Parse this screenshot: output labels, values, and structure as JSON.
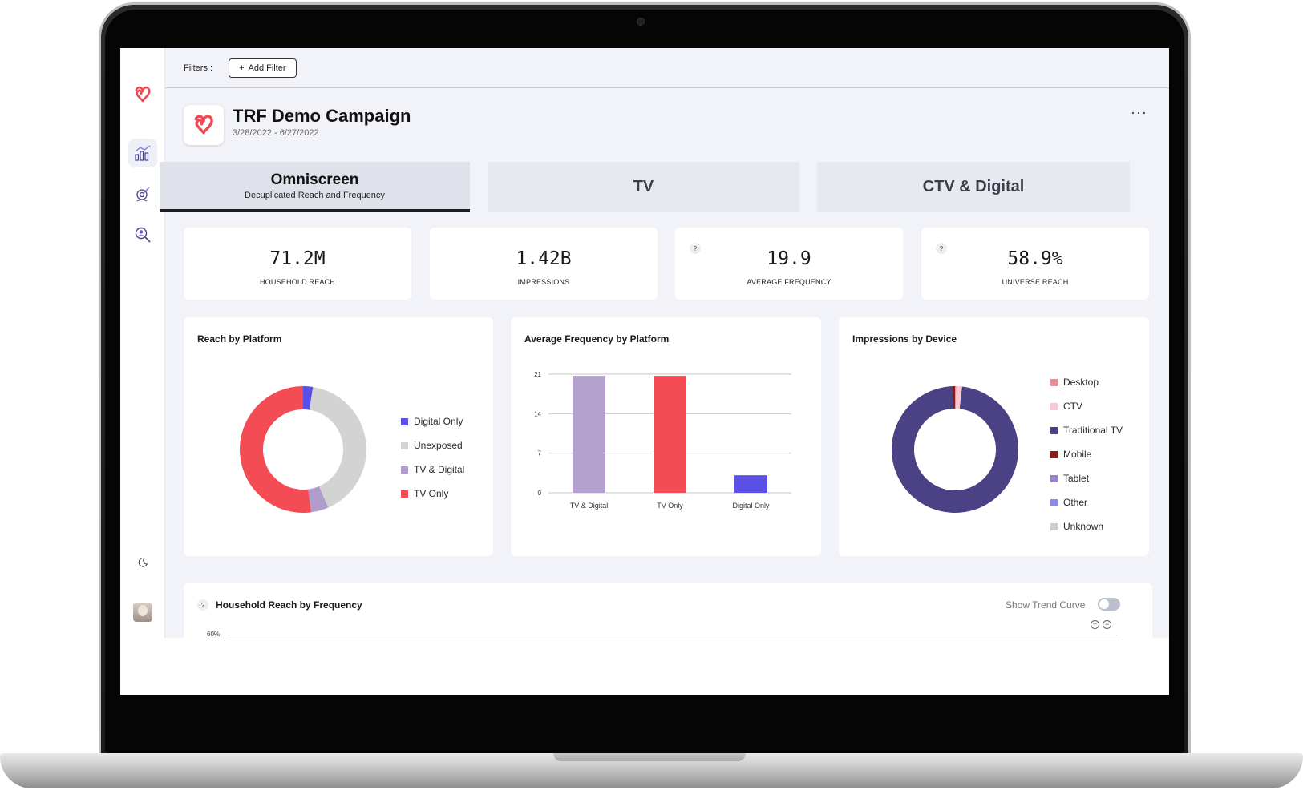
{
  "filters": {
    "label": "Filters :",
    "add_label": "Add Filter",
    "add_icon": "plus-icon"
  },
  "campaign": {
    "title": "TRF Demo Campaign",
    "dates": "3/28/2022 - 6/27/2022",
    "more": "···"
  },
  "tabs": [
    {
      "label": "Omniscreen",
      "sublabel": "Decuplicated Reach and Frequency",
      "active": true
    },
    {
      "label": "TV",
      "active": false
    },
    {
      "label": "CTV & Digital",
      "active": false
    }
  ],
  "kpis": [
    {
      "value": "71.2M",
      "label": "HOUSEHOLD REACH"
    },
    {
      "value": "1.42B",
      "label": "IMPRESSIONS"
    },
    {
      "value": "19.9",
      "label": "AVERAGE FREQUENCY",
      "help": "?"
    },
    {
      "value": "58.9%",
      "label": "UNIVERSE REACH",
      "help": "?"
    }
  ],
  "reach_card": {
    "title": "Reach by Platform",
    "legend": [
      "Digital Only",
      "Unexposed",
      "TV & Digital",
      "TV Only"
    ]
  },
  "freq_card": {
    "title": "Average Frequency by Platform"
  },
  "device_card": {
    "title": "Impressions by Device",
    "legend": [
      "Desktop",
      "CTV",
      "Traditional TV",
      "Mobile",
      "Tablet",
      "Other",
      "Unknown"
    ]
  },
  "bottom": {
    "help": "?",
    "title": "Household Reach by Frequency",
    "trend_label": "Show Trend Curve",
    "trend_on": false,
    "y_top": "60%",
    "zoom_in": "+",
    "zoom_out": "−"
  },
  "colors": {
    "accent_red": "#ef4a53",
    "digital_only": "#5b50e6",
    "unexposed": "#d3d3d3",
    "tv_digital": "#b09dcc",
    "tv_only": "#f44c55",
    "traditional_tv": "#4b4185",
    "desktop": "#ec8d91",
    "ctv": "#f5c9d1",
    "mobile": "#8b1a1a",
    "tablet": "#9a80c8",
    "other": "#8d88e8",
    "unknown": "#cccccc"
  },
  "chart_data": [
    {
      "type": "pie",
      "title": "Reach by Platform",
      "labels": [
        "Digital Only",
        "Unexposed",
        "TV & Digital",
        "TV Only"
      ],
      "values": [
        2.5,
        41,
        4.5,
        52
      ],
      "colors": [
        "#5b50e6",
        "#d3d3d3",
        "#b09dcc",
        "#f44c55"
      ],
      "legend": "right"
    },
    {
      "type": "bar",
      "title": "Average Frequency by Platform",
      "categories": [
        "TV & Digital",
        "TV Only",
        "Digital Only"
      ],
      "values": [
        20.7,
        20.7,
        3.1
      ],
      "colors": [
        "#b3a0cd",
        "#f44c55",
        "#5b50e6"
      ],
      "ylim": [
        0,
        21
      ],
      "yticks": [
        0,
        7,
        14,
        21
      ],
      "grid": true
    },
    {
      "type": "pie",
      "title": "Impressions by Device",
      "labels": [
        "Desktop",
        "CTV",
        "Traditional TV",
        "Mobile",
        "Tablet",
        "Other",
        "Unknown"
      ],
      "values": [
        0.3,
        1.5,
        97.6,
        0.6,
        0,
        0,
        0
      ],
      "colors": [
        "#ec8d91",
        "#f5c9d1",
        "#4b4185",
        "#8b1a1a",
        "#9a80c8",
        "#8d88e8",
        "#cccccc"
      ],
      "legend": "right"
    }
  ]
}
